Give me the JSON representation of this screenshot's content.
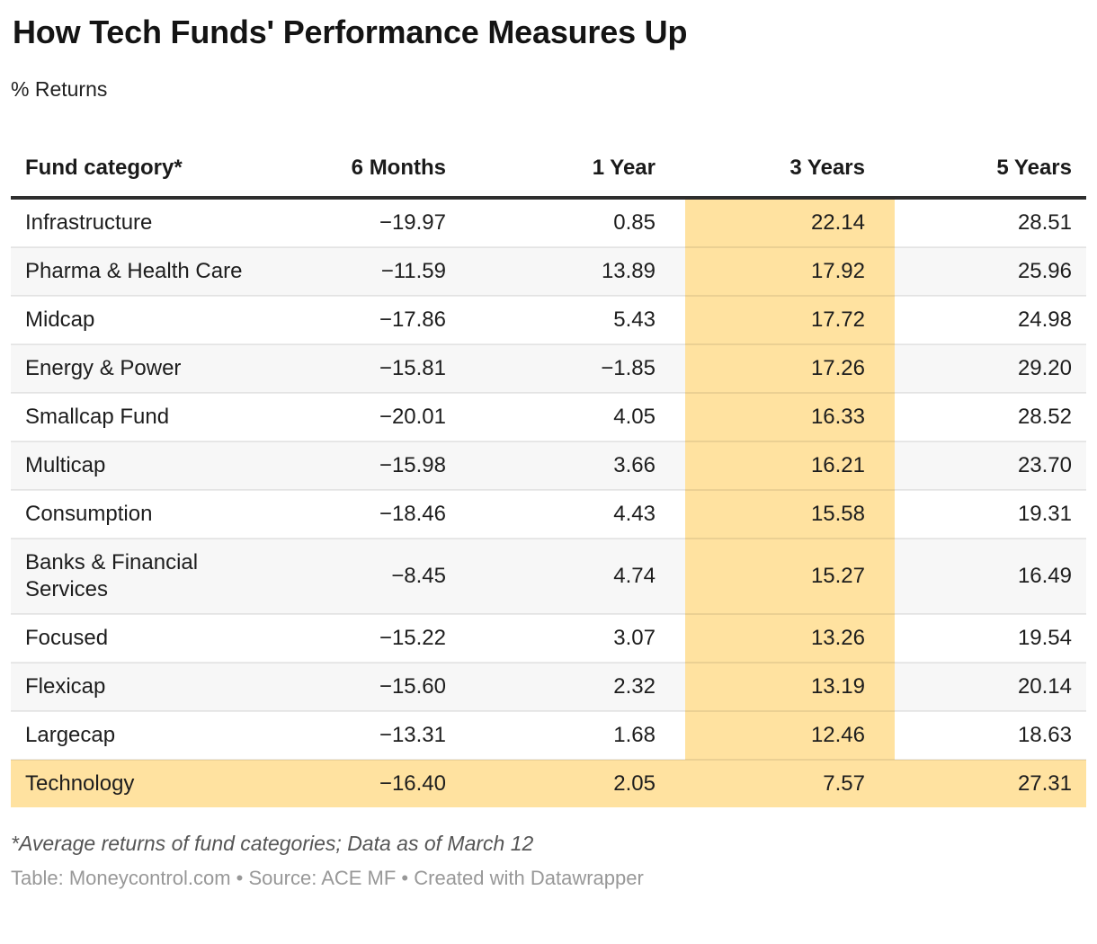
{
  "header": {
    "title": "How Tech Funds' Performance Measures Up",
    "subtitle": "% Returns"
  },
  "table": {
    "columns": [
      "Fund category*",
      "6 Months",
      "1 Year",
      "3 Years",
      "5 Years"
    ],
    "highlight_column": "3 Years",
    "highlight_row": "Technology",
    "rows": [
      {
        "category": "Infrastructure",
        "values": [
          "−19.97",
          "0.85",
          "22.14",
          "28.51"
        ],
        "highlight": false
      },
      {
        "category": "Pharma & Health Care",
        "values": [
          "−11.59",
          "13.89",
          "17.92",
          "25.96"
        ],
        "highlight": false
      },
      {
        "category": "Midcap",
        "values": [
          "−17.86",
          "5.43",
          "17.72",
          "24.98"
        ],
        "highlight": false
      },
      {
        "category": "Energy & Power",
        "values": [
          "−15.81",
          "−1.85",
          "17.26",
          "29.20"
        ],
        "highlight": false
      },
      {
        "category": "Smallcap Fund",
        "values": [
          "−20.01",
          "4.05",
          "16.33",
          "28.52"
        ],
        "highlight": false
      },
      {
        "category": "Multicap",
        "values": [
          "−15.98",
          "3.66",
          "16.21",
          "23.70"
        ],
        "highlight": false
      },
      {
        "category": "Consumption",
        "values": [
          "−18.46",
          "4.43",
          "15.58",
          "19.31"
        ],
        "highlight": false
      },
      {
        "category": "Banks & Financial Services",
        "values": [
          "−8.45",
          "4.74",
          "15.27",
          "16.49"
        ],
        "highlight": false
      },
      {
        "category": "Focused",
        "values": [
          "−15.22",
          "3.07",
          "13.26",
          "19.54"
        ],
        "highlight": false
      },
      {
        "category": "Flexicap",
        "values": [
          "−15.60",
          "2.32",
          "13.19",
          "20.14"
        ],
        "highlight": false
      },
      {
        "category": "Largecap",
        "values": [
          "−13.31",
          "1.68",
          "12.46",
          "18.63"
        ],
        "highlight": false
      },
      {
        "category": "Technology",
        "values": [
          "−16.40",
          "2.05",
          "7.57",
          "27.31"
        ],
        "highlight": true
      }
    ]
  },
  "chart_data": {
    "type": "table",
    "title": "How Tech Funds' Performance Measures Up",
    "subtitle": "% Returns",
    "columns": [
      "Fund category*",
      "6 Months",
      "1 Year",
      "3 Years",
      "5 Years"
    ],
    "rows": [
      [
        "Infrastructure",
        -19.97,
        0.85,
        22.14,
        28.51
      ],
      [
        "Pharma & Health Care",
        -11.59,
        13.89,
        17.92,
        25.96
      ],
      [
        "Midcap",
        -17.86,
        5.43,
        17.72,
        24.98
      ],
      [
        "Energy & Power",
        -15.81,
        -1.85,
        17.26,
        29.2
      ],
      [
        "Smallcap Fund",
        -20.01,
        4.05,
        16.33,
        28.52
      ],
      [
        "Multicap",
        -15.98,
        3.66,
        16.21,
        23.7
      ],
      [
        "Consumption",
        -18.46,
        4.43,
        15.58,
        19.31
      ],
      [
        "Banks & Financial Services",
        -8.45,
        4.74,
        15.27,
        16.49
      ],
      [
        "Focused",
        -15.22,
        3.07,
        13.26,
        19.54
      ],
      [
        "Flexicap",
        -15.6,
        2.32,
        13.19,
        20.14
      ],
      [
        "Largecap",
        -13.31,
        1.68,
        12.46,
        18.63
      ],
      [
        "Technology",
        -16.4,
        2.05,
        7.57,
        27.31
      ]
    ],
    "highlighted_column": "3 Years",
    "highlighted_row": "Technology",
    "layout_hints": {
      "zebra_striping": true,
      "numbers_right_aligned": true
    }
  },
  "colors": {
    "highlight": "#ffe2a0",
    "stripe": "#f7f7f7",
    "header_rule": "#2e2e2e",
    "footnote_text": "#555555",
    "attribution_text": "#989898"
  },
  "footer": {
    "footnote": "*Average returns of fund categories; Data as of March 12",
    "attribution": "Table: Moneycontrol.com • Source: ACE MF • Created with Datawrapper"
  }
}
